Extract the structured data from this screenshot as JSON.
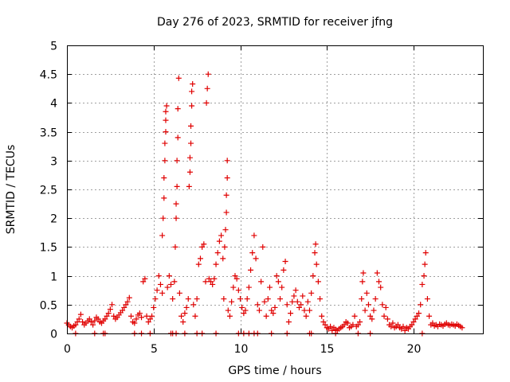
{
  "chart_data": {
    "type": "scatter",
    "title": "Day 276 of 2023, SRMTID for receiver jfng",
    "xlabel": "GPS time / hours",
    "ylabel": "SRMTID / TECUs",
    "xlim": [
      0,
      24
    ],
    "ylim": [
      0,
      5
    ],
    "x_ticks": [
      0,
      5,
      10,
      15,
      20
    ],
    "x_tick_labels": [
      "0",
      "5",
      "10",
      "15",
      "20"
    ],
    "y_ticks": [
      0,
      0.5,
      1,
      1.5,
      2,
      2.5,
      3,
      3.5,
      4,
      4.5,
      5
    ],
    "y_tick_labels": [
      "0",
      "0.5",
      "1",
      "1.5",
      "2",
      "2.5",
      "3",
      "3.5",
      "4",
      "4.5",
      "5"
    ],
    "grid": true,
    "marker": "+",
    "color": "#e00000",
    "series": [
      {
        "name": "SRMTID",
        "points": [
          [
            0.0,
            0.18
          ],
          [
            0.1,
            0.15
          ],
          [
            0.2,
            0.12
          ],
          [
            0.3,
            0.1
          ],
          [
            0.4,
            0.13
          ],
          [
            0.5,
            0.15
          ],
          [
            0.6,
            0.2
          ],
          [
            0.7,
            0.25
          ],
          [
            0.8,
            0.33
          ],
          [
            0.9,
            0.2
          ],
          [
            1.0,
            0.15
          ],
          [
            1.1,
            0.18
          ],
          [
            1.2,
            0.22
          ],
          [
            1.3,
            0.25
          ],
          [
            1.4,
            0.2
          ],
          [
            1.5,
            0.15
          ],
          [
            1.6,
            0.22
          ],
          [
            1.7,
            0.28
          ],
          [
            1.8,
            0.25
          ],
          [
            1.9,
            0.2
          ],
          [
            2.0,
            0.18
          ],
          [
            2.1,
            0.22
          ],
          [
            2.2,
            0.25
          ],
          [
            2.3,
            0.3
          ],
          [
            2.4,
            0.35
          ],
          [
            2.5,
            0.42
          ],
          [
            2.6,
            0.5
          ],
          [
            2.7,
            0.3
          ],
          [
            2.8,
            0.25
          ],
          [
            2.9,
            0.28
          ],
          [
            3.0,
            0.32
          ],
          [
            3.1,
            0.36
          ],
          [
            3.2,
            0.4
          ],
          [
            3.3,
            0.45
          ],
          [
            3.4,
            0.5
          ],
          [
            3.5,
            0.55
          ],
          [
            3.6,
            0.62
          ],
          [
            3.7,
            0.3
          ],
          [
            3.8,
            0.2
          ],
          [
            3.9,
            0.18
          ],
          [
            4.0,
            0.25
          ],
          [
            4.1,
            0.32
          ],
          [
            4.2,
            0.35
          ],
          [
            4.3,
            0.28
          ],
          [
            4.4,
            0.9
          ],
          [
            4.5,
            0.95
          ],
          [
            4.6,
            0.3
          ],
          [
            4.7,
            0.2
          ],
          [
            4.8,
            0.25
          ],
          [
            4.9,
            0.3
          ],
          [
            5.0,
            0.45
          ],
          [
            5.1,
            0.6
          ],
          [
            5.2,
            0.75
          ],
          [
            5.3,
            1.0
          ],
          [
            5.4,
            0.85
          ],
          [
            5.5,
            0.7
          ],
          [
            5.5,
            1.7
          ],
          [
            5.55,
            2.0
          ],
          [
            5.6,
            2.35
          ],
          [
            5.6,
            2.7
          ],
          [
            5.65,
            3.0
          ],
          [
            5.65,
            3.3
          ],
          [
            5.7,
            3.5
          ],
          [
            5.7,
            3.7
          ],
          [
            5.7,
            3.85
          ],
          [
            5.75,
            3.95
          ],
          [
            5.8,
            0.8
          ],
          [
            5.9,
            1.0
          ],
          [
            6.0,
            0.85
          ],
          [
            6.1,
            0.6
          ],
          [
            6.2,
            0.9
          ],
          [
            6.25,
            1.5
          ],
          [
            6.3,
            2.0
          ],
          [
            6.3,
            2.25
          ],
          [
            6.35,
            2.55
          ],
          [
            6.35,
            3.0
          ],
          [
            6.4,
            3.4
          ],
          [
            6.4,
            3.9
          ],
          [
            6.45,
            4.43
          ],
          [
            6.5,
            0.7
          ],
          [
            6.6,
            0.3
          ],
          [
            6.7,
            0.2
          ],
          [
            6.8,
            0.35
          ],
          [
            6.9,
            0.45
          ],
          [
            7.0,
            0.6
          ],
          [
            7.05,
            2.55
          ],
          [
            7.1,
            2.8
          ],
          [
            7.1,
            3.05
          ],
          [
            7.15,
            3.3
          ],
          [
            7.15,
            3.6
          ],
          [
            7.2,
            3.95
          ],
          [
            7.2,
            4.2
          ],
          [
            7.25,
            4.33
          ],
          [
            7.3,
            0.5
          ],
          [
            7.4,
            0.3
          ],
          [
            7.5,
            0.6
          ],
          [
            7.6,
            1.2
          ],
          [
            7.7,
            1.3
          ],
          [
            7.8,
            1.5
          ],
          [
            7.9,
            1.55
          ],
          [
            8.0,
            0.9
          ],
          [
            8.05,
            4.0
          ],
          [
            8.1,
            4.25
          ],
          [
            8.15,
            4.5
          ],
          [
            8.2,
            0.95
          ],
          [
            8.3,
            0.9
          ],
          [
            8.4,
            0.85
          ],
          [
            8.5,
            0.95
          ],
          [
            8.6,
            1.2
          ],
          [
            8.7,
            1.4
          ],
          [
            8.8,
            1.6
          ],
          [
            8.9,
            1.7
          ],
          [
            9.0,
            1.3
          ],
          [
            9.05,
            0.6
          ],
          [
            9.1,
            1.5
          ],
          [
            9.15,
            1.8
          ],
          [
            9.2,
            2.1
          ],
          [
            9.2,
            2.4
          ],
          [
            9.25,
            2.7
          ],
          [
            9.25,
            3.0
          ],
          [
            9.3,
            0.4
          ],
          [
            9.4,
            0.3
          ],
          [
            9.5,
            0.55
          ],
          [
            9.6,
            0.8
          ],
          [
            9.7,
            1.0
          ],
          [
            9.8,
            0.95
          ],
          [
            9.9,
            0.75
          ],
          [
            10.0,
            0.6
          ],
          [
            10.1,
            0.45
          ],
          [
            10.2,
            0.35
          ],
          [
            10.3,
            0.4
          ],
          [
            10.4,
            0.6
          ],
          [
            10.5,
            0.8
          ],
          [
            10.6,
            1.1
          ],
          [
            10.7,
            1.4
          ],
          [
            10.8,
            1.7
          ],
          [
            10.9,
            1.3
          ],
          [
            11.0,
            0.5
          ],
          [
            11.1,
            0.4
          ],
          [
            11.2,
            0.9
          ],
          [
            11.3,
            1.5
          ],
          [
            11.4,
            0.55
          ],
          [
            11.5,
            0.3
          ],
          [
            11.6,
            0.6
          ],
          [
            11.7,
            0.8
          ],
          [
            11.8,
            0.4
          ],
          [
            11.9,
            0.35
          ],
          [
            12.0,
            0.45
          ],
          [
            12.1,
            1.0
          ],
          [
            12.2,
            0.9
          ],
          [
            12.3,
            0.6
          ],
          [
            12.4,
            0.8
          ],
          [
            12.5,
            1.1
          ],
          [
            12.6,
            1.25
          ],
          [
            12.7,
            0.5
          ],
          [
            12.8,
            0.2
          ],
          [
            12.9,
            0.35
          ],
          [
            13.0,
            0.55
          ],
          [
            13.1,
            0.65
          ],
          [
            13.2,
            0.75
          ],
          [
            13.3,
            0.55
          ],
          [
            13.4,
            0.45
          ],
          [
            13.5,
            0.5
          ],
          [
            13.6,
            0.65
          ],
          [
            13.7,
            0.4
          ],
          [
            13.8,
            0.3
          ],
          [
            13.9,
            0.55
          ],
          [
            14.0,
            0.4
          ],
          [
            14.1,
            0.7
          ],
          [
            14.2,
            1.0
          ],
          [
            14.3,
            1.4
          ],
          [
            14.35,
            1.55
          ],
          [
            14.4,
            1.2
          ],
          [
            14.5,
            0.9
          ],
          [
            14.6,
            0.6
          ],
          [
            14.7,
            0.3
          ],
          [
            14.8,
            0.2
          ],
          [
            14.9,
            0.15
          ],
          [
            15.0,
            0.1
          ],
          [
            15.1,
            0.08
          ],
          [
            15.2,
            0.12
          ],
          [
            15.3,
            0.05
          ],
          [
            15.4,
            0.1
          ],
          [
            15.5,
            0.07
          ],
          [
            15.6,
            0.05
          ],
          [
            15.7,
            0.08
          ],
          [
            15.8,
            0.1
          ],
          [
            15.9,
            0.12
          ],
          [
            16.0,
            0.15
          ],
          [
            16.1,
            0.2
          ],
          [
            16.2,
            0.18
          ],
          [
            16.3,
            0.1
          ],
          [
            16.4,
            0.12
          ],
          [
            16.5,
            0.15
          ],
          [
            16.6,
            0.3
          ],
          [
            16.7,
            0.12
          ],
          [
            16.8,
            0.15
          ],
          [
            16.9,
            0.2
          ],
          [
            17.0,
            0.6
          ],
          [
            17.05,
            0.9
          ],
          [
            17.1,
            1.05
          ],
          [
            17.2,
            0.4
          ],
          [
            17.3,
            0.7
          ],
          [
            17.4,
            0.5
          ],
          [
            17.5,
            0.3
          ],
          [
            17.6,
            0.25
          ],
          [
            17.7,
            0.4
          ],
          [
            17.8,
            0.6
          ],
          [
            17.9,
            1.05
          ],
          [
            18.0,
            0.9
          ],
          [
            18.1,
            0.8
          ],
          [
            18.2,
            0.5
          ],
          [
            18.3,
            0.3
          ],
          [
            18.4,
            0.45
          ],
          [
            18.5,
            0.25
          ],
          [
            18.6,
            0.15
          ],
          [
            18.7,
            0.12
          ],
          [
            18.8,
            0.18
          ],
          [
            18.9,
            0.1
          ],
          [
            19.0,
            0.12
          ],
          [
            19.1,
            0.15
          ],
          [
            19.2,
            0.1
          ],
          [
            19.3,
            0.08
          ],
          [
            19.4,
            0.12
          ],
          [
            19.5,
            0.05
          ],
          [
            19.6,
            0.1
          ],
          [
            19.7,
            0.08
          ],
          [
            19.8,
            0.12
          ],
          [
            19.9,
            0.15
          ],
          [
            20.0,
            0.2
          ],
          [
            20.1,
            0.25
          ],
          [
            20.2,
            0.3
          ],
          [
            20.3,
            0.35
          ],
          [
            20.4,
            0.5
          ],
          [
            20.5,
            0.85
          ],
          [
            20.6,
            1.0
          ],
          [
            20.65,
            1.2
          ],
          [
            20.7,
            1.4
          ],
          [
            20.8,
            0.6
          ],
          [
            20.9,
            0.3
          ],
          [
            21.0,
            0.15
          ],
          [
            21.1,
            0.18
          ],
          [
            21.2,
            0.13
          ],
          [
            21.3,
            0.15
          ],
          [
            21.4,
            0.12
          ],
          [
            21.5,
            0.16
          ],
          [
            21.6,
            0.15
          ],
          [
            21.7,
            0.13
          ],
          [
            21.8,
            0.16
          ],
          [
            21.9,
            0.18
          ],
          [
            22.0,
            0.15
          ],
          [
            22.1,
            0.14
          ],
          [
            22.2,
            0.16
          ],
          [
            22.3,
            0.15
          ],
          [
            22.4,
            0.13
          ],
          [
            22.5,
            0.16
          ],
          [
            22.6,
            0.14
          ],
          [
            22.7,
            0.12
          ],
          [
            22.8,
            0.1
          ],
          [
            0.5,
            0.0
          ],
          [
            1.6,
            0.0
          ],
          [
            2.1,
            0.0
          ],
          [
            2.2,
            0.0
          ],
          [
            3.9,
            0.0
          ],
          [
            4.3,
            0.0
          ],
          [
            4.8,
            0.0
          ],
          [
            6.0,
            0.0
          ],
          [
            6.1,
            0.0
          ],
          [
            6.3,
            0.0
          ],
          [
            6.8,
            0.0
          ],
          [
            7.5,
            0.0
          ],
          [
            7.8,
            0.0
          ],
          [
            8.6,
            0.0
          ],
          [
            9.9,
            0.0
          ],
          [
            10.2,
            0.0
          ],
          [
            10.5,
            0.0
          ],
          [
            10.8,
            0.0
          ],
          [
            11.0,
            0.0
          ],
          [
            11.8,
            0.0
          ],
          [
            12.7,
            0.0
          ],
          [
            14.0,
            0.0
          ],
          [
            14.1,
            0.0
          ],
          [
            15.5,
            0.0
          ],
          [
            16.8,
            0.0
          ],
          [
            17.5,
            0.0
          ],
          [
            20.5,
            0.0
          ]
        ]
      }
    ]
  }
}
